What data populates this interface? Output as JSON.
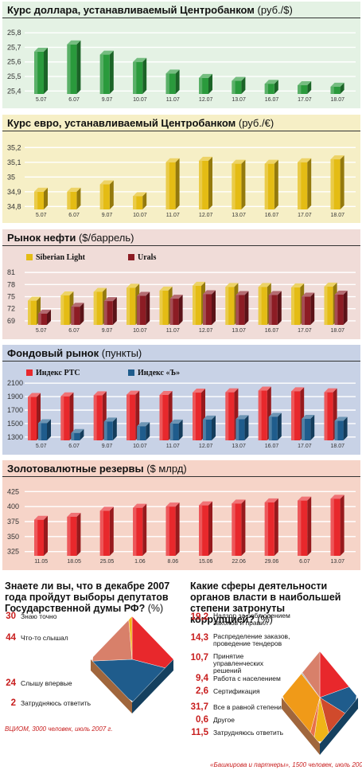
{
  "chart_data": [
    {
      "type": "bar",
      "title": "Курс доллара, устанавливаемый Центробанком",
      "unit": "(руб./$)",
      "categories": [
        "5.07",
        "6.07",
        "9.07",
        "10.07",
        "11.07",
        "12.07",
        "13.07",
        "16.07",
        "17.07",
        "18.07"
      ],
      "values": [
        25.67,
        25.72,
        25.65,
        25.6,
        25.52,
        25.49,
        25.47,
        25.45,
        25.44,
        25.43
      ],
      "yticks": [
        25.4,
        25.5,
        25.6,
        25.7,
        25.8
      ],
      "ylim": [
        25.38,
        25.85
      ],
      "bar_color": "#2a9a3c",
      "background": "#e4f2e4"
    },
    {
      "type": "bar",
      "title": "Курс евро, устанавливаемый Центробанком",
      "unit": "(руб./€)",
      "categories": [
        "5.07",
        "6.07",
        "9.07",
        "10.07",
        "11.07",
        "12.07",
        "13.07",
        "16.07",
        "17.07",
        "18.07"
      ],
      "values": [
        34.9,
        34.9,
        34.95,
        34.87,
        35.1,
        35.11,
        35.09,
        35.09,
        35.1,
        35.12
      ],
      "yticks": [
        34.8,
        34.9,
        35.0,
        35.1,
        35.2
      ],
      "ylim": [
        34.78,
        35.25
      ],
      "bar_color": "#e4bc14",
      "background": "#f6efc6"
    },
    {
      "type": "bar",
      "title": "Рынок нефти",
      "unit": "($/баррель)",
      "categories": [
        "5.07",
        "6.07",
        "9.07",
        "10.07",
        "11.07",
        "12.07",
        "13.07",
        "16.07",
        "17.07",
        "18.07"
      ],
      "series": [
        {
          "name": "Siberian Light",
          "values": [
            74.0,
            75.3,
            76.2,
            77.2,
            76.5,
            77.7,
            77.4,
            77.4,
            77.3,
            77.5
          ],
          "color": "#e4bc14"
        },
        {
          "name": "Urals",
          "values": [
            70.8,
            72.5,
            73.9,
            75.2,
            74.5,
            75.6,
            75.4,
            75.4,
            75.0,
            75.5
          ],
          "color": "#8c1c24"
        }
      ],
      "yticks": [
        69,
        72,
        75,
        78,
        81
      ],
      "ylim": [
        68,
        83
      ],
      "background": "#f0dcd8"
    },
    {
      "type": "bar",
      "title": "Фондовый рынок",
      "unit": "(пункты)",
      "categories": [
        "5.07",
        "6.07",
        "9.07",
        "10.07",
        "11.07",
        "12.07",
        "13.07",
        "16.07",
        "17.07",
        "18.07"
      ],
      "series": [
        {
          "name": "Индекс РТС",
          "values": [
            1895,
            1905,
            1920,
            1930,
            1925,
            1960,
            1965,
            1990,
            1980,
            1965
          ],
          "color": "#e8282c"
        },
        {
          "name": "Индекс «Ъ»",
          "values": [
            1505,
            1360,
            1530,
            1460,
            1500,
            1560,
            1565,
            1600,
            1570,
            1540
          ],
          "color": "#1f5c8c"
        }
      ],
      "yticks": [
        1300,
        1500,
        1700,
        1900,
        2100
      ],
      "ylim": [
        1250,
        2150
      ],
      "background": "#c8d2e6"
    },
    {
      "type": "bar",
      "title": "Золотовалютные резервы",
      "unit": "($ млрд)",
      "categories": [
        "11.05",
        "18.05",
        "25.05",
        "1.06",
        "8.06",
        "15.06",
        "22.06",
        "29.06",
        "6.07",
        "13.07"
      ],
      "values": [
        378,
        383,
        393,
        398,
        400,
        402,
        405,
        407,
        410,
        413
      ],
      "yticks": [
        325,
        350,
        375,
        400,
        425
      ],
      "ylim": [
        318,
        432
      ],
      "bar_color": "#e8282c",
      "background": "#f6d4c8"
    },
    {
      "type": "pie",
      "title": "Знаете ли вы, что в декабре 2007 года пройдут выборы депутатов Государственной думы РФ?",
      "unit": "(%)",
      "categories": [
        "Знаю точно",
        "Что-то слышал",
        "Слышу впервые",
        "Затрудняюсь ответить"
      ],
      "values": [
        30,
        44,
        24,
        2
      ],
      "colors": [
        "#e8282c",
        "#1f5c8c",
        "#d8806a",
        "#f0b418"
      ],
      "source": "ВЦИОМ, 3000 человек, июль 2007 г."
    },
    {
      "type": "pie",
      "title": "Какие сферы деятельности органов власти в наибольшей степени затронуты коррупцией?",
      "unit": "(%)",
      "categories": [
        "Надзор за соблюдением законов и правил",
        "Распределение заказов, проведение тендеров",
        "Принятие управленческих решений",
        "Работа с населением",
        "Сертификация",
        "Все в равной степени",
        "Другое",
        "Затрудняюсь ответить"
      ],
      "values": [
        19.2,
        14.3,
        10.7,
        9.4,
        2.6,
        31.7,
        0.6,
        11.5
      ],
      "value_labels": [
        "19,2",
        "14,3",
        "10,7",
        "9,4",
        "2,6",
        "31,7",
        "0,6",
        "11,5"
      ],
      "colors": [
        "#e8282c",
        "#1f5c8c",
        "#d04a2c",
        "#f0b418",
        "#e8704a",
        "#f09a18",
        "#b4b4b4",
        "#d8806a"
      ],
      "source": "«Башкирова и партнеры», 1500 человек, июль 2007 г."
    }
  ]
}
